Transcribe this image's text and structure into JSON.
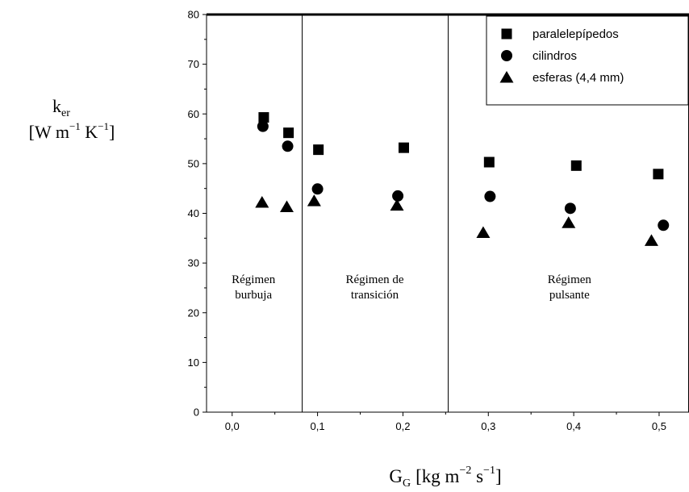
{
  "chart_data": {
    "type": "scatter",
    "xlabel": {
      "main": "G",
      "sub": "G",
      "unit": "[kg m",
      "exp1": "−2",
      "mid": " s",
      "exp2": "−1",
      "end": "]"
    },
    "ylabel": {
      "main": "k",
      "sub": "er",
      "line2_open": "[W m",
      "exp1": "−1",
      "mid": " K",
      "exp2": "−1",
      "end": "]"
    },
    "xlim": [
      -0.03,
      0.535
    ],
    "ylim": [
      0,
      80
    ],
    "xticks": [
      "0,0",
      "0,1",
      "0,2",
      "0,3",
      "0,4",
      "0,5"
    ],
    "xtick_values": [
      0.0,
      0.1,
      0.2,
      0.3,
      0.4,
      0.5
    ],
    "yticks": [
      "0",
      "10",
      "20",
      "30",
      "40",
      "50",
      "60",
      "70",
      "80"
    ],
    "ytick_values": [
      0,
      10,
      20,
      30,
      40,
      50,
      60,
      70,
      80
    ],
    "series": [
      {
        "name": "paralelepípedos",
        "marker": "square",
        "x": [
          0.037,
          0.066,
          0.101,
          0.201,
          0.301,
          0.403,
          0.499
        ],
        "y": [
          59.3,
          56.2,
          52.8,
          53.2,
          50.3,
          49.6,
          47.9
        ]
      },
      {
        "name": "cilindros",
        "marker": "circle",
        "x": [
          0.036,
          0.065,
          0.1,
          0.194,
          0.302,
          0.396,
          0.505
        ],
        "y": [
          57.5,
          53.5,
          44.9,
          43.5,
          43.4,
          41.0,
          37.6
        ]
      },
      {
        "name": "esferas (4,4 mm)",
        "marker": "triangle",
        "x": [
          0.035,
          0.064,
          0.096,
          0.193,
          0.294,
          0.394,
          0.491
        ],
        "y": [
          42.2,
          41.3,
          42.5,
          41.6,
          36.1,
          38.1,
          34.5
        ]
      }
    ],
    "vlines": [
      0.082,
      0.253
    ],
    "regions": [
      {
        "lines": [
          "Régimen",
          "burbuja"
        ],
        "x": 0.025,
        "y": 26
      },
      {
        "lines": [
          "Régimen de",
          "transición"
        ],
        "x": 0.167,
        "y": 26
      },
      {
        "lines": [
          "Régimen",
          "pulsante"
        ],
        "x": 0.395,
        "y": 26
      }
    ],
    "legend_position": "top-right"
  }
}
